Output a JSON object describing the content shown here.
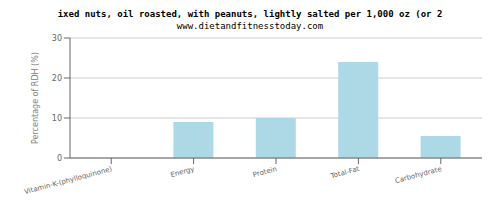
{
  "chart_data": {
    "type": "bar",
    "title": "ixed nuts, oil roasted, with peanuts, lightly salted per 1,000 oz (or 2",
    "subtitle": "www.dietandfitnesstoday.com",
    "categories": [
      "Vitamin-K-(phylloquinone)",
      "Energy",
      "Protein",
      "Total-Fat",
      "Carbohydrate"
    ],
    "values": [
      0,
      9.0,
      10.0,
      24.0,
      5.5
    ],
    "color": "#add8e6",
    "ylabel": "Percentage of RDH (%)",
    "ylim": [
      0,
      30
    ],
    "yticks": [
      0,
      10,
      20,
      30
    ],
    "grid": true
  }
}
